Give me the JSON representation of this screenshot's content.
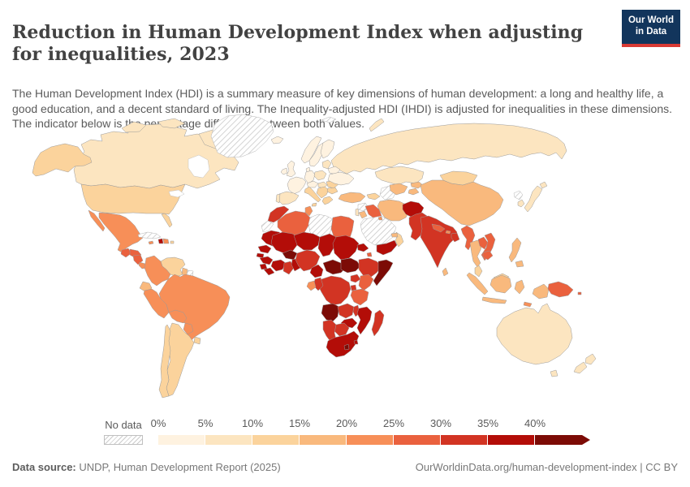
{
  "header": {
    "title": "Reduction in Human Development Index when adjusting for inequalities, 2023",
    "subtitle": "The Human Development Index (HDI) is a summary measure of key dimensions of human development: a long and healthy life, a good education, and a decent standard of living. The Inequality-adjusted HDI (IHDI) is adjusted for inequalities in these dimensions. The indicator below is the percentage difference between both values.",
    "logo": {
      "line1": "Our World",
      "line2": "in Data",
      "bg_color": "#12355c",
      "accent_color": "#d93a34"
    }
  },
  "legend": {
    "no_data_label": "No data",
    "ticks": [
      "0%",
      "5%",
      "10%",
      "15%",
      "20%",
      "25%",
      "30%",
      "35%",
      "40%"
    ]
  },
  "footer": {
    "source_label": "Data source:",
    "source_text": " UNDP, Human Development Report (2025)",
    "right_text": "OurWorldinData.org/human-development-index | CC BY"
  },
  "chart_data": {
    "type": "heatmap",
    "subtype": "world-choropleth",
    "title": "Reduction in Human Development Index when adjusting for inequalities, 2023",
    "unit": "%",
    "legend_position": "bottom",
    "buckets": [
      "0-5%",
      "5-10%",
      "10-15%",
      "15-20%",
      "20-25%",
      "25-30%",
      "30-35%",
      "35-40%",
      "40%+"
    ],
    "colors": [
      "#fef2e0",
      "#fce5c0",
      "#fbd39c",
      "#f9b97d",
      "#f78f58",
      "#ea613e",
      "#d23423",
      "#b30d08",
      "#7c0b06"
    ],
    "no_data": {
      "label": "No data",
      "fill": "hatched"
    },
    "countries": {
      "Canada": "5-10%",
      "United States": "10-15%",
      "Greenland": "No data",
      "Mexico": "20-25%",
      "Guatemala": "25-30%",
      "Honduras": "25-30%",
      "Nicaragua": "25-30%",
      "Costa Rica": "20-25%",
      "Panama": "20-25%",
      "Cuba": "No data",
      "Jamaica": "20-25%",
      "Haiti": "35-40%",
      "Dominican Republic": "20-25%",
      "Puerto Rico": "10-15%",
      "Venezuela": "10-15%",
      "Colombia": "20-25%",
      "Ecuador": "15-20%",
      "Peru": "20-25%",
      "Brazil": "20-25%",
      "Bolivia": "20-25%",
      "Paraguay": "20-25%",
      "Uruguay": "10-15%",
      "Argentina": "10-15%",
      "Chile": "10-15%",
      "Guyana": "15-20%",
      "Suriname": "No data",
      "Iceland": "0-5%",
      "Norway": "0-5%",
      "Sweden": "0-5%",
      "Finland": "0-5%",
      "Denmark": "0-5%",
      "United Kingdom": "0-5%",
      "Ireland": "0-5%",
      "France": "0-5%",
      "Spain": "5-10%",
      "Portugal": "5-10%",
      "Germany": "0-5%",
      "Poland": "5-10%",
      "Austria": "0-5%",
      "Hungary": "5-10%",
      "Italy": "10-15%",
      "Serbia": "10-15%",
      "Greece": "10-15%",
      "Romania": "10-15%",
      "Bulgaria": "10-15%",
      "Lithuania": "5-10%",
      "Belarus": "0-5%",
      "Ukraine": "0-5%",
      "Russia": "5-10%",
      "Svalbard": "No data",
      "Kazakhstan": "5-10%",
      "Uzbekistan": "15-20%",
      "Turkmenistan": "No data",
      "Kyrgyzstan": "15-20%",
      "Tajikistan": "15-20%",
      "Georgia": "10-15%",
      "Turkey": "15-20%",
      "Syria": "No data",
      "Israel": "5-10%",
      "Jordan": "15-20%",
      "Iraq": "25-30%",
      "Saudi Arabia": "No data",
      "Yemen": "35-40%",
      "Oman": "10-15%",
      "United Arab Emirates": "15-20%",
      "Kuwait": "20-25%",
      "Iran": "15-20%",
      "Afghanistan": "35-40%",
      "Pakistan": "30-35%",
      "India": "30-35%",
      "Nepal": "25-30%",
      "Bhutan": "20-25%",
      "Bangladesh": "30-35%",
      "Sri Lanka": "15-20%",
      "Myanmar": "25-30%",
      "Thailand": "15-20%",
      "Laos": "25-30%",
      "Vietnam": "25-30%",
      "Cambodia": "25-30%",
      "Malaysia": "10-15%",
      "Indonesia": "15-20%",
      "Philippines": "15-20%",
      "Papua New Guinea": "25-30%",
      "Timor-Leste": "20-25%",
      "Solomon Islands": "25-30%",
      "Mongolia": "10-15%",
      "China": "15-20%",
      "Japan": "5-10%",
      "South Korea": "5-10%",
      "North Korea": "No data",
      "Australia": "5-10%",
      "New Zealand": "5-10%",
      "Morocco": "30-35%",
      "Western Sahara": "No data",
      "Algeria": "25-30%",
      "Tunisia": "20-25%",
      "Libya": "No data",
      "Egypt": "25-30%",
      "Mauritania": "35-40%",
      "Senegal": "35-40%",
      "Guinea-Bissau": "35-40%",
      "Guinea": "35-40%",
      "Sierra Leone": "35-40%",
      "Liberia": "35-40%",
      "Mali": "35-40%",
      "Burkina Faso": "40%+",
      "Cote d'Ivoire": "35-40%",
      "Ghana": "30-35%",
      "Benin": "35-40%",
      "Niger": "35-40%",
      "Nigeria": "30-35%",
      "Chad": "35-40%",
      "Sudan": "35-40%",
      "Eritrea": "35-40%",
      "Djibouti": "25-30%",
      "Cameroon": "35-40%",
      "Central African Republic": "40%+",
      "South Sudan": "40%+",
      "Ethiopia": "30-35%",
      "Somalia": "40%+",
      "Uganda": "30-35%",
      "Kenya": "25-30%",
      "Rwanda": "30-35%",
      "Democratic Republic of Congo": "30-35%",
      "Congo": "30-35%",
      "Gabon": "20-25%",
      "Tanzania": "25-30%",
      "Angola": "40%+",
      "Zambia": "30-35%",
      "Malawi": "30-35%",
      "Mozambique": "35-40%",
      "Madagascar": "30-35%",
      "Zimbabwe": "35-40%",
      "Botswana": "30-35%",
      "Namibia": "30-35%",
      "South Africa": "35-40%",
      "Lesotho": "40%+",
      "Eswatini": "35-40%"
    }
  }
}
